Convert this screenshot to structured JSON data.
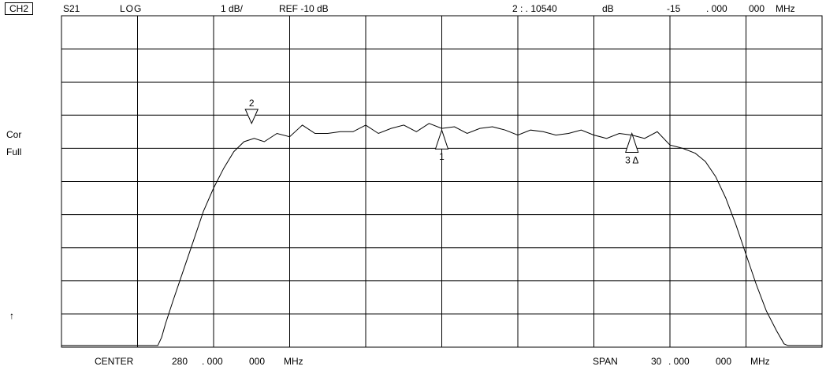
{
  "header": {
    "channel": "CH2",
    "parameter": "S21",
    "format": "LOG",
    "scale": "1 dB/",
    "reference": "REF -10 dB",
    "marker_readout": "2 : . 10540",
    "marker_unit": "dB",
    "marker_freq": "-15",
    "marker_freq_frac1": ". 000",
    "marker_freq_frac2": "000",
    "marker_freq_unit": "MHz"
  },
  "side": {
    "cor": "Cor",
    "full": "Full",
    "ref_arrow": "↑"
  },
  "footer": {
    "center_label": "CENTER",
    "center_value": "280",
    "center_frac1": ". 000",
    "center_frac2": "000",
    "center_unit": "MHz",
    "span_label": "SPAN",
    "span_value": "30",
    "span_frac1": ". 000",
    "span_frac2": "000",
    "span_unit": "MHz"
  },
  "chart_data": {
    "type": "line",
    "xlim": [
      265,
      295
    ],
    "ylim": [
      -20,
      -10
    ],
    "x_divisions": 10,
    "y_divisions": 10,
    "grid": true,
    "series": [
      {
        "x": [
          265,
          268.8,
          268.95,
          269.1,
          269.4,
          269.8,
          270.2,
          270.6,
          271.0,
          271.4,
          271.8,
          272.2,
          272.6,
          273.0,
          273.5,
          274.0,
          274.5,
          275.0,
          275.5,
          276.0,
          276.5,
          277.0,
          277.5,
          278.0,
          278.5,
          279.0,
          279.5,
          280.0,
          280.5,
          281.0,
          281.5,
          282.0,
          282.5,
          283.0,
          283.5,
          284.0,
          284.5,
          285.0,
          285.5,
          286.0,
          286.5,
          287.0,
          287.5,
          288.0,
          288.5,
          289.0,
          289.5,
          290.0,
          290.4,
          290.8,
          291.2,
          291.6,
          292.0,
          292.4,
          292.8,
          293.2,
          293.5,
          293.65,
          295
        ],
        "y": [
          -19.95,
          -19.95,
          -19.7,
          -19.3,
          -18.6,
          -17.7,
          -16.8,
          -15.9,
          -15.2,
          -14.6,
          -14.1,
          -13.8,
          -13.7,
          -13.8,
          -13.55,
          -13.65,
          -13.3,
          -13.55,
          -13.55,
          -13.5,
          -13.5,
          -13.3,
          -13.55,
          -13.4,
          -13.3,
          -13.5,
          -13.25,
          -13.4,
          -13.35,
          -13.55,
          -13.4,
          -13.35,
          -13.45,
          -13.6,
          -13.45,
          -13.5,
          -13.6,
          -13.55,
          -13.45,
          -13.6,
          -13.7,
          -13.55,
          -13.6,
          -13.7,
          -13.5,
          -13.9,
          -14.0,
          -14.15,
          -14.4,
          -14.85,
          -15.5,
          -16.3,
          -17.2,
          -18.1,
          -18.9,
          -19.5,
          -19.9,
          -19.95,
          -19.95
        ]
      }
    ],
    "markers": [
      {
        "label": "1",
        "x": 280.0,
        "y": -13.45,
        "pointing": "up"
      },
      {
        "label": "2",
        "x": 272.5,
        "y": -13.25,
        "pointing": "down"
      },
      {
        "label": "3 Δ",
        "x": 287.5,
        "y": -13.55,
        "pointing": "up"
      }
    ]
  }
}
